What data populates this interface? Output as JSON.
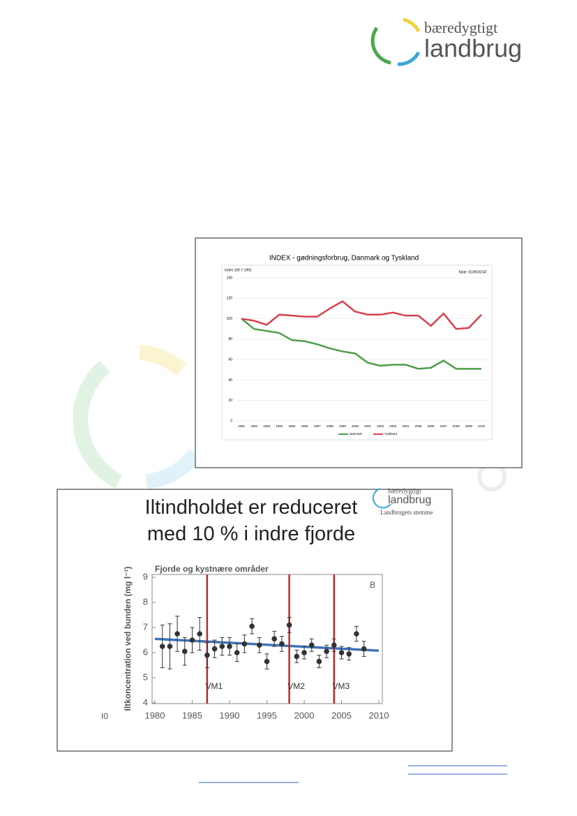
{
  "header": {
    "logo_top": "bæredygtigt",
    "logo_bottom": "landbrug"
  },
  "chart_data": [
    {
      "type": "line",
      "title": "INDEX - gødningsforbrug, Danmark og Tyskland",
      "subtitle": "Index 100 = 1991",
      "source": "Kilde: EUROSTAT",
      "categories": [
        "1991",
        "1992",
        "1993",
        "1994",
        "1995",
        "1996",
        "1997",
        "1998",
        "1999",
        "2000",
        "2001",
        "2002",
        "2003",
        "2004",
        "2005",
        "2006",
        "2007",
        "2008",
        "2009",
        "2010"
      ],
      "series": [
        {
          "name": "Danmark",
          "color": "#4e9d4a",
          "values": [
            100,
            90,
            88,
            86,
            79,
            78,
            75,
            71,
            68,
            66,
            57,
            54,
            55,
            55,
            51,
            52,
            59,
            51,
            51,
            51
          ]
        },
        {
          "name": "Tyskland",
          "color": "#d9414e",
          "values": [
            100,
            98,
            94,
            104,
            103,
            102,
            102,
            110,
            117,
            107,
            104,
            104,
            106,
            103,
            103,
            93,
            105,
            90,
            91,
            104
          ]
        }
      ],
      "ylim": [
        0,
        140
      ],
      "yticks": [
        0,
        20,
        40,
        60,
        80,
        100,
        120,
        140
      ],
      "grid": true,
      "legend": "bottom"
    },
    {
      "type": "errorbar",
      "title": "Iltindholdet er reduceret med 10 % i indre fjorde",
      "plot_title": "Fjorde og kystnære områder",
      "panel": "B",
      "corner_note": "I0",
      "logo_top": "bæredygtigt",
      "logo_bottom": "landbrug",
      "logo_tagline": "Landbrugets stemme",
      "ylabel": "Iltkoncentration ved bunden (mg l⁻¹)",
      "x": [
        1981,
        1982,
        1983,
        1984,
        1985,
        1986,
        1987,
        1988,
        1989,
        1990,
        1991,
        1992,
        1993,
        1994,
        1995,
        1996,
        1997,
        1998,
        1999,
        2000,
        2001,
        2002,
        2003,
        2004,
        2005,
        2006,
        2007,
        2008
      ],
      "values": [
        6.25,
        6.25,
        6.75,
        6.05,
        6.5,
        6.75,
        5.9,
        6.15,
        6.25,
        6.25,
        6.0,
        6.35,
        7.05,
        6.3,
        5.65,
        6.55,
        6.35,
        7.1,
        5.85,
        6.0,
        6.3,
        5.65,
        6.05,
        6.3,
        6.0,
        5.95,
        6.75,
        6.15
      ],
      "errors": [
        0.85,
        0.9,
        0.7,
        0.55,
        0.5,
        0.65,
        0.5,
        0.35,
        0.35,
        0.35,
        0.35,
        0.35,
        0.3,
        0.3,
        0.3,
        0.3,
        0.3,
        0.3,
        0.25,
        0.25,
        0.25,
        0.25,
        0.25,
        0.25,
        0.25,
        0.25,
        0.3,
        0.3
      ],
      "color": "#333333",
      "trend": {
        "x": [
          1980,
          2010
        ],
        "values": [
          6.55,
          6.08
        ],
        "color": "#3d74b8"
      },
      "vlines": [
        {
          "x": 1987,
          "label": "VM1"
        },
        {
          "x": 1998,
          "label": "VM2"
        },
        {
          "x": 2004,
          "label": "VM3"
        }
      ],
      "vline_color": "#c0282d",
      "xlim": [
        1980,
        2010
      ],
      "xticks": [
        1980,
        1985,
        1990,
        1995,
        2000,
        2005,
        2010
      ],
      "ylim": [
        4,
        9
      ],
      "yticks": [
        4,
        5,
        6,
        7,
        8,
        9
      ]
    }
  ]
}
